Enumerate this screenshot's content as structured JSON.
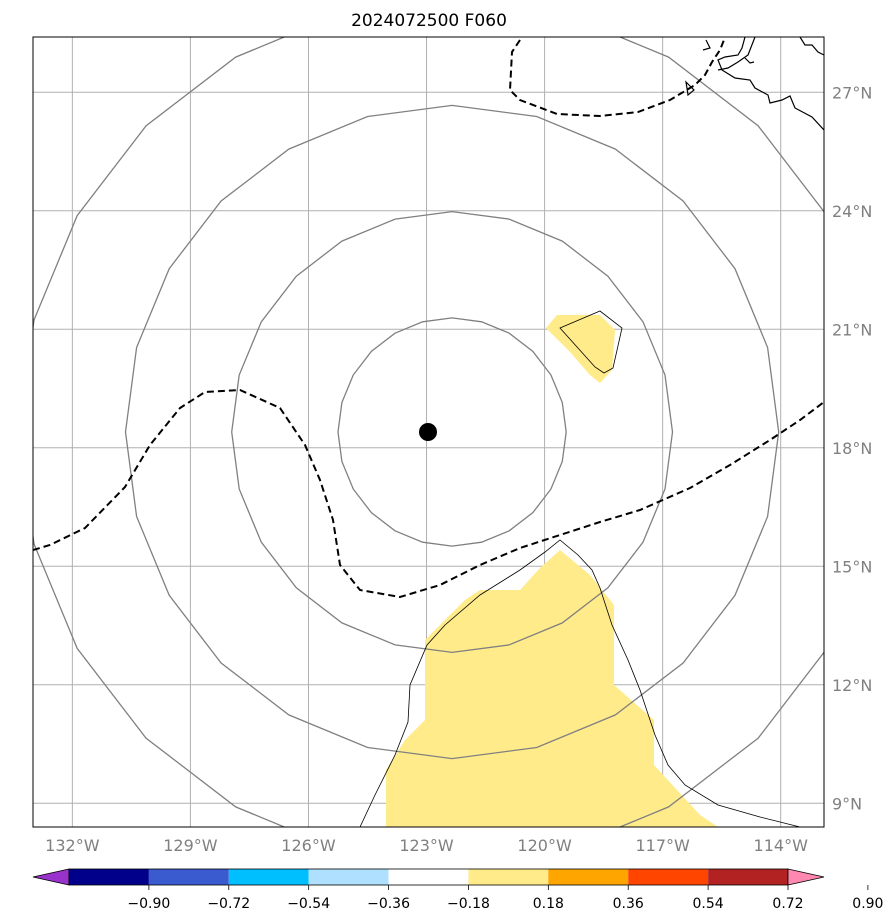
{
  "title": "2024072500 F060",
  "map": {
    "lon_range": [
      -133,
      -112.9
    ],
    "lat_range": [
      8.4,
      28.4
    ],
    "lon_ticks": [
      {
        "value": -132,
        "label": "132°W"
      },
      {
        "value": -129,
        "label": "129°W"
      },
      {
        "value": -126,
        "label": "126°W"
      },
      {
        "value": -123,
        "label": "123°W"
      },
      {
        "value": -120,
        "label": "120°W"
      },
      {
        "value": -117,
        "label": "117°W"
      },
      {
        "value": -114,
        "label": "114°W"
      }
    ],
    "lat_ticks": [
      {
        "value": 9,
        "label": "9°N"
      },
      {
        "value": 12,
        "label": "12°N"
      },
      {
        "value": 15,
        "label": "15°N"
      },
      {
        "value": 18,
        "label": "18°N"
      },
      {
        "value": 21,
        "label": "21°N"
      },
      {
        "value": 24,
        "label": "24°N"
      },
      {
        "value": 27,
        "label": "27°N"
      }
    ],
    "center": {
      "lon": -122.35,
      "lat": 18.4
    },
    "range_rings_deg": [
      2.9,
      5.6,
      8.3,
      11.0
    ],
    "colors": {
      "grid": "#b0b0b0",
      "ring": "#808080",
      "fill_positive": "#ffeb8a",
      "dashed": "#000000",
      "center": "#000000"
    }
  },
  "colorbar": {
    "colors": [
      "#9932cc",
      "#00008b",
      "#3a5bd0",
      "#00bfff",
      "#b0e0ff",
      "#ffffff",
      "#ffeb8a",
      "#ffa500",
      "#ff4500",
      "#b22222",
      "#ff88b0"
    ],
    "tick_labels": [
      "−0.90",
      "−0.72",
      "−0.54",
      "−0.36",
      "−0.18",
      "0.18",
      "0.36",
      "0.54",
      "0.72",
      "0.90"
    ]
  }
}
